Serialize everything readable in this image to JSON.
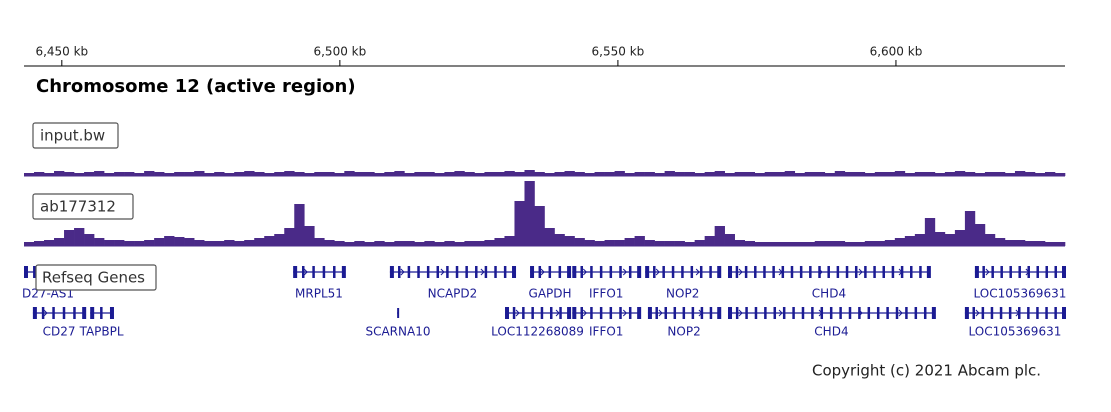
{
  "ruler": {
    "xlim": [
      6443.2,
      6630.4
    ],
    "ticks": [
      {
        "value": 6450,
        "label": "6,450 kb"
      },
      {
        "value": 6500,
        "label": "6,500 kb"
      },
      {
        "value": 6550,
        "label": "6,550 kb"
      },
      {
        "value": 6600,
        "label": "6,600 kb"
      }
    ]
  },
  "title": "Chromosome 12 (active region)",
  "tracks": [
    {
      "name": "input.bw",
      "color": "#4a2a88",
      "values": [
        3,
        4,
        3,
        5,
        4,
        3,
        4,
        5,
        3,
        4,
        4,
        3,
        5,
        4,
        3,
        4,
        4,
        5,
        3,
        4,
        3,
        4,
        5,
        4,
        3,
        4,
        5,
        4,
        3,
        4,
        4,
        3,
        5,
        4,
        4,
        3,
        4,
        5,
        3,
        4,
        4,
        3,
        4,
        5,
        4,
        3,
        4,
        4,
        5,
        4,
        6,
        4,
        3,
        4,
        5,
        4,
        3,
        4,
        4,
        5,
        3,
        4,
        4,
        3,
        5,
        4,
        4,
        3,
        4,
        5,
        3,
        4,
        4,
        3,
        4,
        4,
        5,
        3,
        4,
        4,
        3,
        5,
        4,
        4,
        3,
        4,
        4,
        5,
        3,
        4,
        4,
        3,
        4,
        5,
        4,
        3,
        4,
        4,
        3,
        5,
        4,
        3,
        4,
        3
      ]
    },
    {
      "name": "ab177312",
      "color": "#4a2a88",
      "values": [
        4,
        5,
        6,
        8,
        16,
        18,
        12,
        8,
        6,
        6,
        5,
        5,
        6,
        8,
        10,
        9,
        8,
        6,
        5,
        5,
        6,
        5,
        6,
        8,
        10,
        12,
        18,
        42,
        20,
        8,
        6,
        5,
        4,
        5,
        4,
        5,
        4,
        5,
        5,
        4,
        5,
        4,
        5,
        4,
        5,
        5,
        6,
        8,
        10,
        45,
        65,
        40,
        18,
        12,
        10,
        8,
        6,
        5,
        6,
        6,
        8,
        10,
        6,
        5,
        5,
        5,
        4,
        6,
        10,
        20,
        12,
        6,
        5,
        4,
        4,
        4,
        4,
        4,
        4,
        5,
        5,
        5,
        4,
        4,
        5,
        5,
        6,
        8,
        10,
        12,
        28,
        14,
        12,
        16,
        35,
        22,
        12,
        8,
        6,
        6,
        5,
        5,
        4,
        4
      ]
    }
  ],
  "genes": {
    "name": "Refseq Genes",
    "color": "#1b1b93",
    "rows": [
      [
        {
          "label": "D27-AS1",
          "start": 6443.2,
          "end": 6447.0
        },
        {
          "label": "MRPL51",
          "start": 6491.6,
          "end": 6500.9
        },
        {
          "label": "NCAPD2",
          "start": 6509.0,
          "end": 6531.5
        },
        {
          "label": "GAPDH",
          "start": 6534.2,
          "end": 6541.4
        },
        {
          "label": "IFFO1",
          "start": 6541.8,
          "end": 6554.0
        },
        {
          "label": "NOP2",
          "start": 6554.9,
          "end": 6568.4
        },
        {
          "label": "CHD4",
          "start": 6569.8,
          "end": 6606.1
        },
        {
          "label": "LOC105369631",
          "start": 6614.2,
          "end": 6630.4
        }
      ],
      [
        {
          "label": "CD27",
          "start": 6444.8,
          "end": 6454.2
        },
        {
          "label": "TAPBPL",
          "start": 6455.1,
          "end": 6459.2
        },
        {
          "label": "SCARNA10",
          "start": 6510.3,
          "end": 6510.6
        },
        {
          "label": "LOC112268089",
          "start": 6529.7,
          "end": 6541.4
        },
        {
          "label": "IFFO1",
          "start": 6541.8,
          "end": 6554.0
        },
        {
          "label": "NOP2",
          "start": 6555.4,
          "end": 6568.4
        },
        {
          "label": "CHD4",
          "start": 6569.8,
          "end": 6607.0
        },
        {
          "label": "LOC105369631",
          "start": 6612.4,
          "end": 6630.4
        }
      ]
    ]
  },
  "copyright": "Copyright (c) 2021 Abcam plc."
}
